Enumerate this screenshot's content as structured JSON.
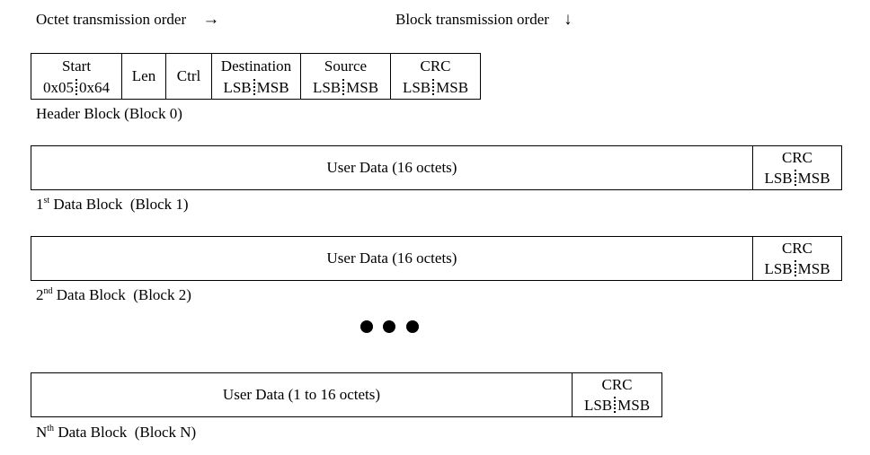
{
  "orders": {
    "octet": "Octet transmission order",
    "octet_arrow": "→",
    "block": "Block transmission order",
    "block_arrow": "↓"
  },
  "header_block": {
    "start_label": "Start",
    "start_lo": "0x05",
    "start_hi": "0x64",
    "len": "Len",
    "ctrl": "Ctrl",
    "destination": "Destination",
    "source": "Source",
    "crc": "CRC",
    "lsb": "LSB",
    "msb": "MSB",
    "caption": "Header Block  (Block 0)"
  },
  "data_block_1": {
    "user_data": "User Data (16 octets)",
    "crc": "CRC",
    "lsb": "LSB",
    "msb": "MSB",
    "caption_num": "1",
    "caption_sup": "st",
    "caption_rest": " Data Block  (Block 1)"
  },
  "data_block_2": {
    "user_data": "User Data (16 octets)",
    "crc": "CRC",
    "lsb": "LSB",
    "msb": "MSB",
    "caption_num": "2",
    "caption_sup": "nd",
    "caption_rest": " Data Block  (Block 2)"
  },
  "data_block_n": {
    "user_data": "User Data (1 to 16 octets)",
    "crc": "CRC",
    "lsb": "LSB",
    "msb": "MSB",
    "caption_num": "N",
    "caption_sup": "th",
    "caption_rest": " Data Block  (Block N)"
  }
}
